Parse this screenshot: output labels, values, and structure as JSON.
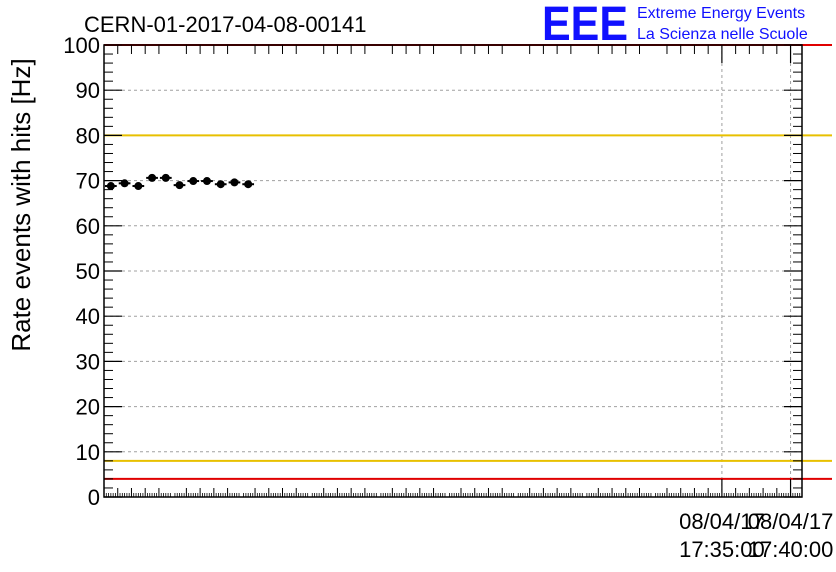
{
  "chart_data": {
    "type": "scatter",
    "title": "CERN-01-2017-04-08-00141",
    "ylabel": "Rate events with hits [Hz]",
    "xlabel": "",
    "ylim": [
      0,
      100
    ],
    "yticks": [
      "0",
      "10",
      "20",
      "30",
      "40",
      "50",
      "60",
      "70",
      "80",
      "90",
      "100"
    ],
    "xlim_seconds": [
      -2700,
      350
    ],
    "x_tick_labels": [
      {
        "t": 0,
        "date": "08/04/17",
        "time": "17:35:00"
      },
      {
        "t": 300,
        "date": "08/04/17",
        "time": "17:40:00"
      }
    ],
    "grid": true,
    "reference_lines": [
      {
        "value": 100,
        "color": "#e00000"
      },
      {
        "value": 80,
        "color": "#e8c000"
      },
      {
        "value": 8,
        "color": "#e8c000"
      },
      {
        "value": 4,
        "color": "#e00000"
      }
    ],
    "series": [
      {
        "points": [
          {
            "x0": -2700,
            "x1": -2640,
            "y": 68.8,
            "err": 0.5
          },
          {
            "x0": -2640,
            "x1": -2580,
            "y": 69.4,
            "err": 0.5
          },
          {
            "x0": -2580,
            "x1": -2520,
            "y": 68.8,
            "err": 0.5
          },
          {
            "x0": -2520,
            "x1": -2460,
            "y": 70.6,
            "err": 0.5
          },
          {
            "x0": -2460,
            "x1": -2400,
            "y": 70.6,
            "err": 0.5
          },
          {
            "x0": -2400,
            "x1": -2340,
            "y": 69.0,
            "err": 0.5
          },
          {
            "x0": -2340,
            "x1": -2280,
            "y": 69.9,
            "err": 0.5
          },
          {
            "x0": -2280,
            "x1": -2220,
            "y": 69.9,
            "err": 0.5
          },
          {
            "x0": -2220,
            "x1": -2160,
            "y": 69.2,
            "err": 0.5
          },
          {
            "x0": -2160,
            "x1": -2100,
            "y": 69.6,
            "err": 0.5
          },
          {
            "x0": -2100,
            "x1": -2040,
            "y": 69.2,
            "err": 0.5
          }
        ]
      }
    ]
  },
  "logo": {
    "mark": "EEE",
    "line1": "Extreme Energy Events",
    "line2": "La Scienza nelle Scuole"
  }
}
